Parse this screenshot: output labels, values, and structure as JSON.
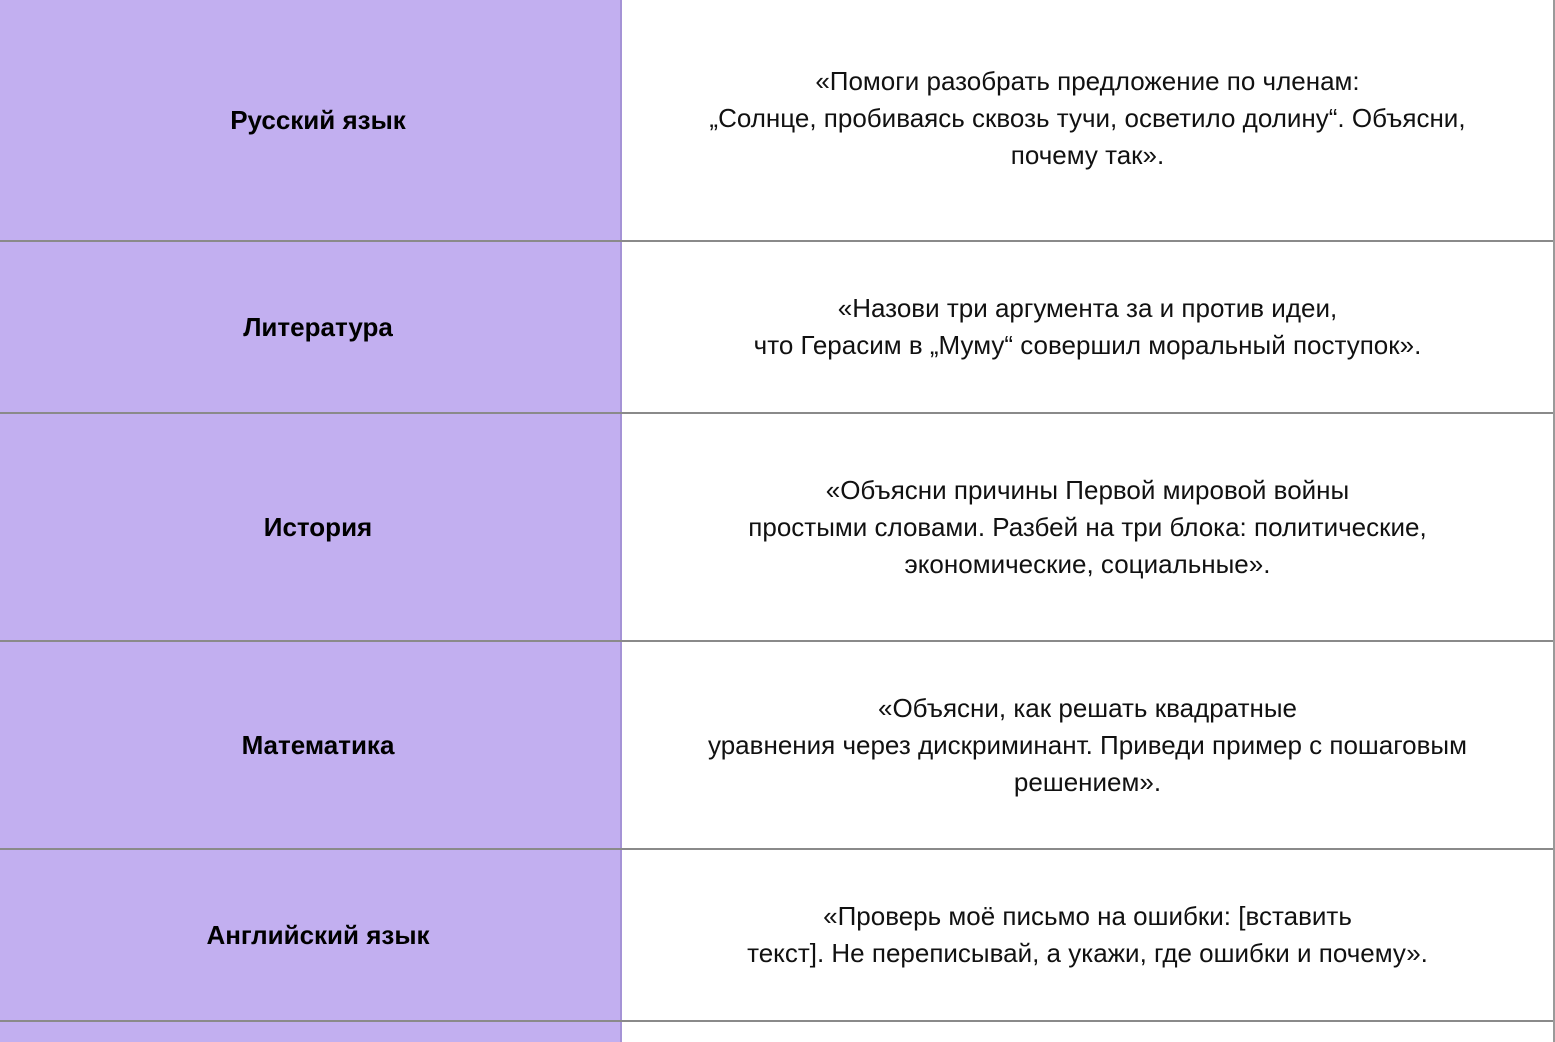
{
  "rows": [
    {
      "subject": "Русский язык",
      "prompt": "«Помоги разобрать предложение по членам:\n„Солнце, пробиваясь сквозь тучи, осветило долину“. Объясни,\nпочему так»."
    },
    {
      "subject": "Литература",
      "prompt": "«Назови три аргумента за и против идеи,\nчто Герасим в „Муму“ совершил моральный поступок»."
    },
    {
      "subject": "История",
      "prompt": "«Объясни причины Первой мировой войны\nпростыми словами. Разбей на три блока: политические,\nэкономические, социальные»."
    },
    {
      "subject": "Математика",
      "prompt": "«Объясни, как решать квадратные\nуравнения через дискриминант. Приведи пример с пошаговым\nрешением»."
    },
    {
      "subject": "Английский язык",
      "prompt": "«Проверь моё письмо на ошибки: [вставить\nтекст]. Не переписывай, а укажи, где ошибки и почему»."
    }
  ],
  "colors": {
    "subject_bg": "#c2aff0"
  }
}
